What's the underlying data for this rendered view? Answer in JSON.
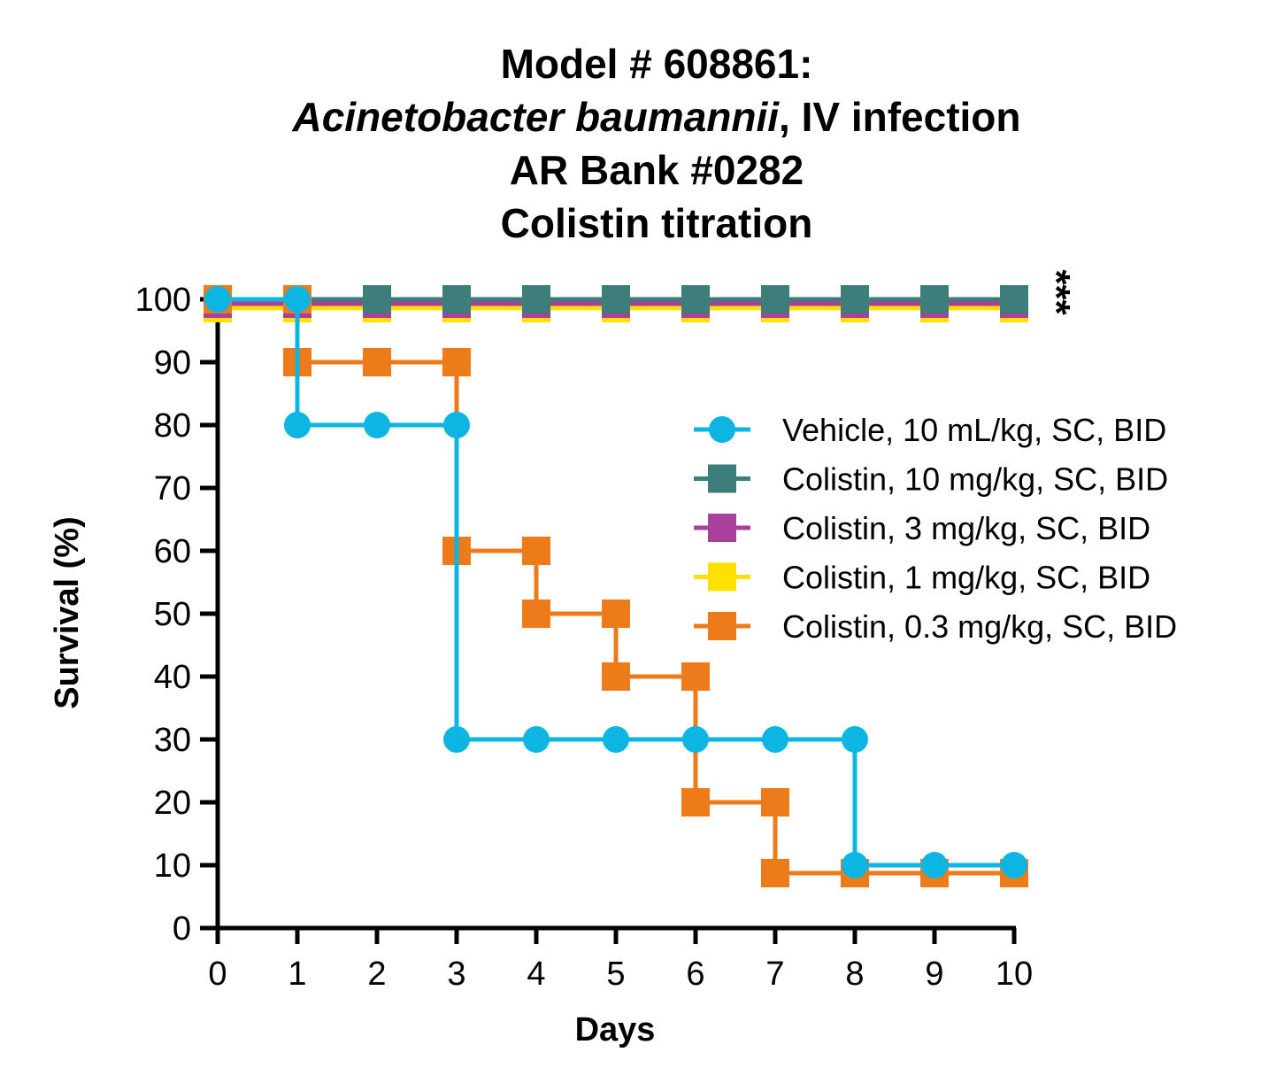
{
  "chart_data": {
    "type": "line",
    "step": true,
    "title_lines": [
      "Model # 608861:",
      "Acinetobacter baumannii, IV infection",
      "AR Bank #0282",
      "Colistin titration"
    ],
    "title_italic_part": "Acinetobacter baumannii",
    "title_rest_part": ", IV infection",
    "xlabel": "Days",
    "ylabel": "Survival (%)",
    "xlim": [
      0,
      10
    ],
    "ylim": [
      0,
      100
    ],
    "x_ticks": [
      "0",
      "1",
      "2",
      "3",
      "4",
      "5",
      "6",
      "7",
      "8",
      "9",
      "10"
    ],
    "y_ticks": [
      "0",
      "10",
      "20",
      "30",
      "40",
      "50",
      "60",
      "70",
      "80",
      "90",
      "100"
    ],
    "grid": false,
    "legend_position": "center-right",
    "annotation": "***",
    "x": [
      0,
      1,
      2,
      3,
      4,
      5,
      6,
      7,
      8,
      9,
      10
    ],
    "series": [
      {
        "name": "Colistin, 1 mg/kg, SC, BID",
        "color": "#FFE000",
        "marker": "square",
        "values": [
          100,
          100,
          100,
          100,
          100,
          100,
          100,
          100,
          100,
          100,
          100
        ]
      },
      {
        "name": "Colistin, 3 mg/kg, SC, BID",
        "color": "#A9409B",
        "marker": "square",
        "values": [
          100,
          100,
          100,
          100,
          100,
          100,
          100,
          100,
          100,
          100,
          100
        ]
      },
      {
        "name": "Colistin, 10 mg/kg, SC, BID",
        "color": "#3E7E7A",
        "marker": "square",
        "values": [
          100,
          100,
          100,
          100,
          100,
          100,
          100,
          100,
          100,
          100,
          100
        ]
      },
      {
        "name": "Colistin, 0.3 mg/kg, SC, BID",
        "color": "#EE7B1A",
        "marker": "square",
        "values": [
          100,
          90,
          90,
          60,
          50,
          40,
          20,
          10,
          10,
          10,
          10
        ]
      },
      {
        "name": "Vehicle, 10 mL/kg, SC, BID",
        "color": "#0CB5E2",
        "marker": "circle",
        "values": [
          100,
          80,
          80,
          30,
          30,
          30,
          30,
          30,
          10,
          10,
          10
        ]
      }
    ],
    "legend_order": [
      "Vehicle, 10 mL/kg, SC, BID",
      "Colistin, 10 mg/kg, SC, BID",
      "Colistin, 3 mg/kg, SC, BID",
      "Colistin, 1 mg/kg, SC, BID",
      "Colistin, 0.3 mg/kg, SC, BID"
    ]
  }
}
